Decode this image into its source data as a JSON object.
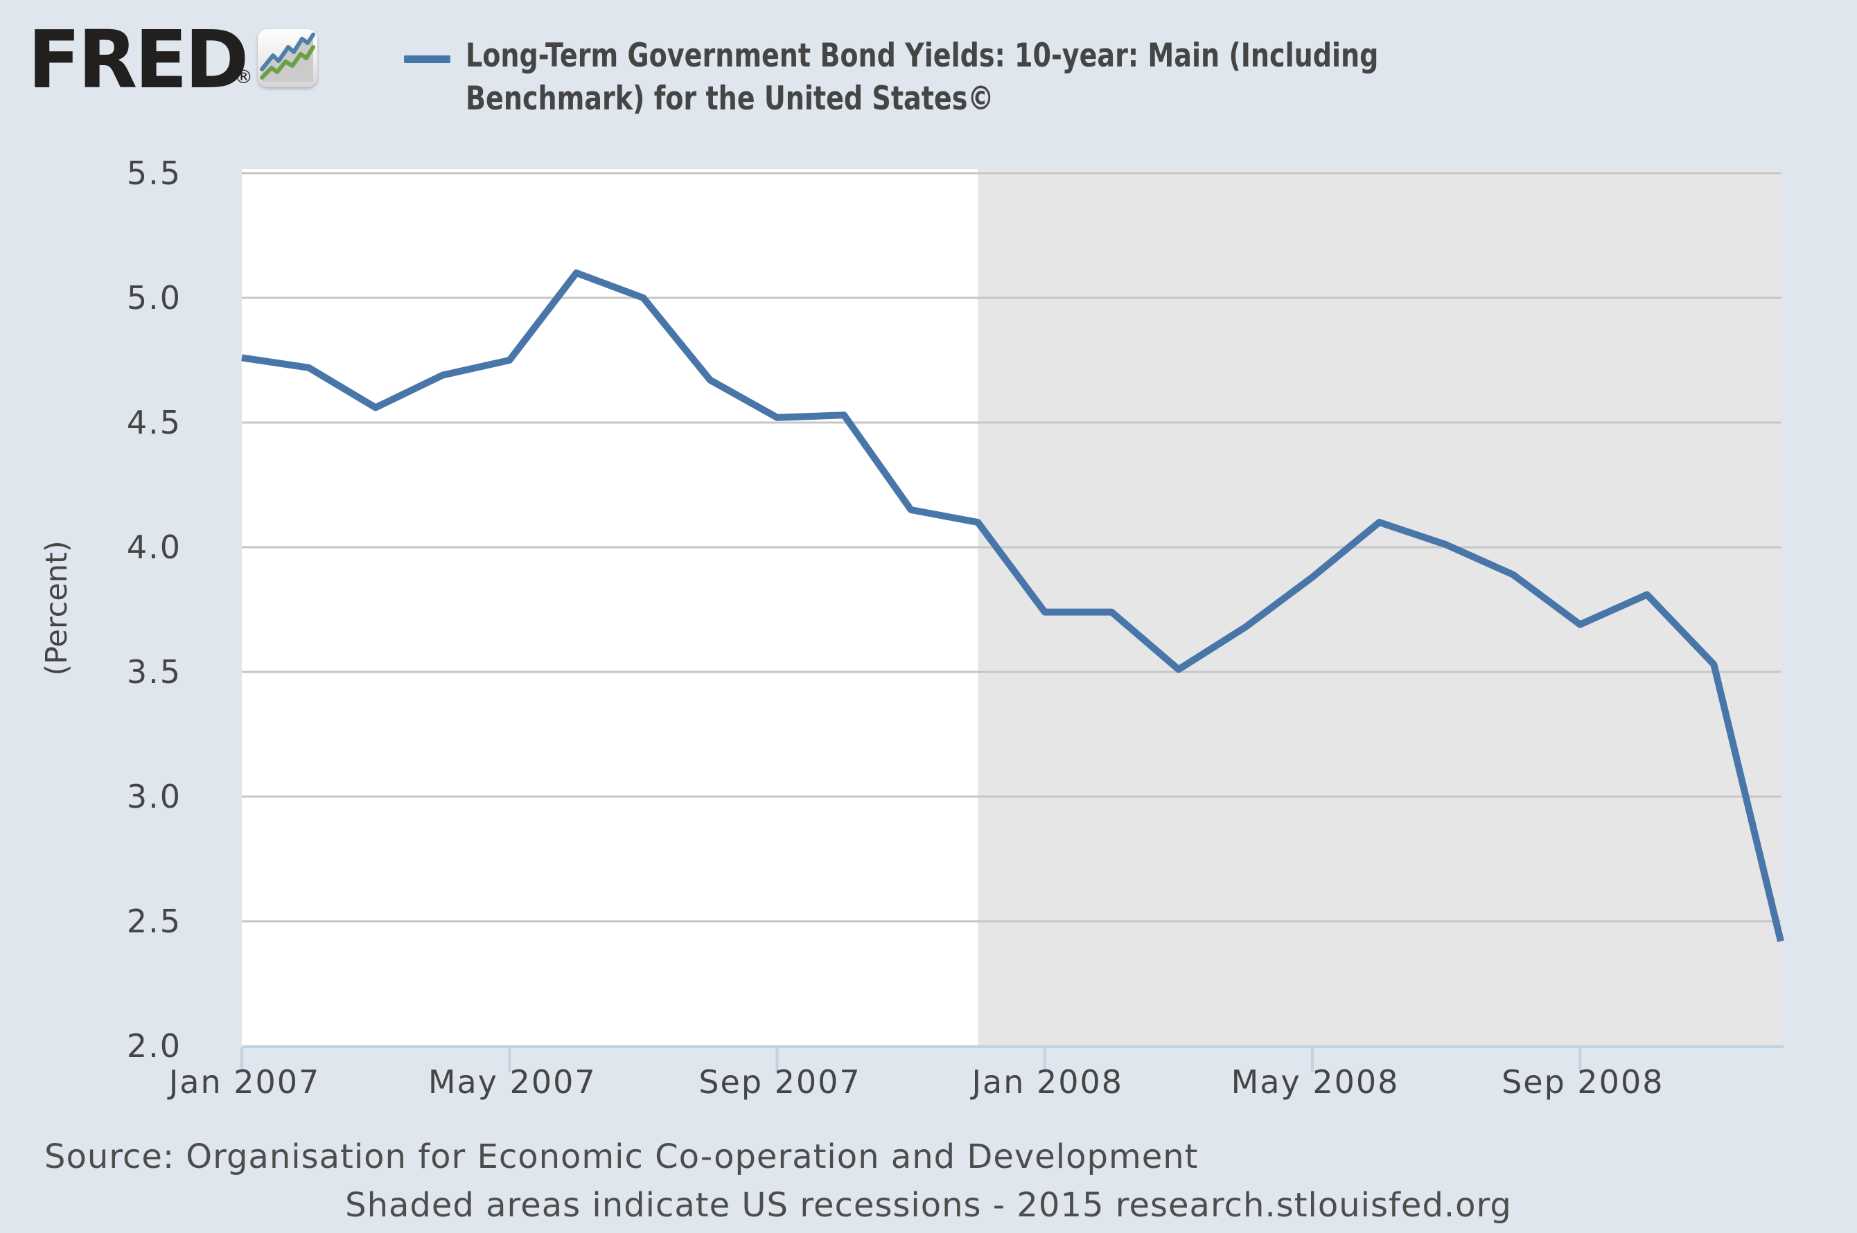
{
  "logo": {
    "text": "FRED",
    "registered": "®",
    "icon": "fred-line-chart-icon"
  },
  "legend": {
    "series_label": "Long-Term Government Bond Yields: 10-year: Main (Including Benchmark) for the United States©",
    "label_lines": [
      "Long-Term Government Bond Yields: 10-year: Main (Including",
      "Benchmark) for the United States©"
    ]
  },
  "y_axis": {
    "label": "(Percent)",
    "ticks": [
      "5.5",
      "5.0",
      "4.5",
      "4.0",
      "3.5",
      "3.0",
      "2.5",
      "2.0"
    ]
  },
  "x_axis": {
    "ticks": [
      {
        "label": "Jan 2007",
        "month_index": 0
      },
      {
        "label": "May 2007",
        "month_index": 4
      },
      {
        "label": "Sep 2007",
        "month_index": 8
      },
      {
        "label": "Jan 2008",
        "month_index": 12
      },
      {
        "label": "May 2008",
        "month_index": 16
      },
      {
        "label": "Sep 2008",
        "month_index": 20
      }
    ]
  },
  "footer": {
    "source": "Source: Organisation for Economic Co-operation and Development",
    "note": "Shaded areas indicate US recessions - 2015 research.stlouisfed.org"
  },
  "colors": {
    "page_background": "#DFE6EE",
    "plot_background": "#FFFFFF",
    "recession_shading": "#E6E6E6",
    "gridline": "#C6C6C6",
    "series_line": "#4876A8",
    "axis_line": "#C3D2E1",
    "text": "#454545",
    "logo_icon_blue": "#4E80A8",
    "logo_icon_green": "#6BA047"
  },
  "chart_data": {
    "type": "line",
    "title": "Long-Term Government Bond Yields: 10-year: Main (Including Benchmark) for the United States©",
    "xlabel": "",
    "ylabel": "(Percent)",
    "ylim": [
      2.0,
      5.5
    ],
    "y_tick_values": [
      5.5,
      5.0,
      4.5,
      4.0,
      3.5,
      3.0,
      2.5,
      2.0
    ],
    "grid": true,
    "legend_position": "top",
    "categories": [
      "Jan 2007",
      "Feb 2007",
      "Mar 2007",
      "Apr 2007",
      "May 2007",
      "Jun 2007",
      "Jul 2007",
      "Aug 2007",
      "Sep 2007",
      "Oct 2007",
      "Nov 2007",
      "Dec 2007",
      "Jan 2008",
      "Feb 2008",
      "Mar 2008",
      "Apr 2008",
      "May 2008",
      "Jun 2008",
      "Jul 2008",
      "Aug 2008",
      "Sep 2008",
      "Oct 2008",
      "Nov 2008",
      "Dec 2008"
    ],
    "series": [
      {
        "name": "Long-Term Government Bond Yields: 10-year: Main (Including Benchmark) for the United States©",
        "values": [
          4.76,
          4.72,
          4.56,
          4.69,
          4.75,
          5.1,
          5.0,
          4.67,
          4.52,
          4.53,
          4.15,
          4.1,
          3.74,
          3.74,
          3.51,
          3.68,
          3.88,
          4.1,
          4.01,
          3.89,
          3.69,
          3.81,
          3.53,
          2.42
        ]
      }
    ],
    "recession_band": {
      "start_category": "Dec 2007",
      "start_index": 11,
      "end_index": 23
    }
  }
}
